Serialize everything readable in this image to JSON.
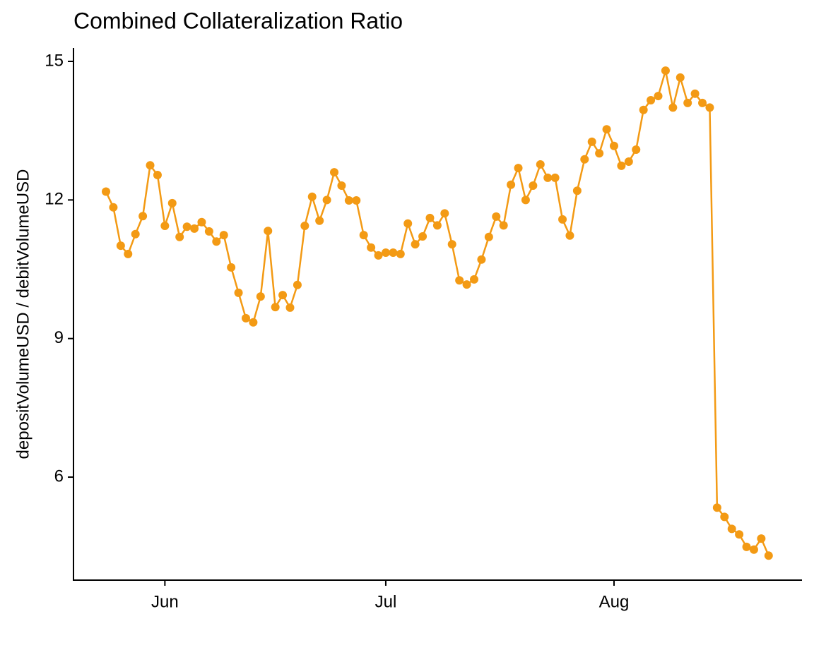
{
  "chart_data": {
    "type": "line",
    "title": "Combined Collateralization Ratio",
    "y_label": "depositVolumeUSD / debitVolumeUSD",
    "categories": [
      null,
      null,
      null,
      null,
      null,
      null,
      null,
      null,
      "Jun",
      null,
      null,
      null,
      null,
      null,
      null,
      null,
      null,
      null,
      null,
      null,
      null,
      null,
      null,
      null,
      null,
      null,
      null,
      null,
      null,
      null,
      null,
      null,
      null,
      null,
      null,
      null,
      null,
      null,
      "Jul",
      null,
      null,
      null,
      null,
      null,
      null,
      null,
      null,
      null,
      null,
      null,
      null,
      null,
      null,
      null,
      null,
      null,
      null,
      null,
      null,
      null,
      null,
      null,
      null,
      null,
      null,
      null,
      null,
      null,
      null,
      "Aug",
      null,
      null,
      null,
      null,
      null,
      null,
      null,
      null,
      null,
      null,
      null,
      null,
      null,
      null,
      null,
      null,
      null,
      null,
      null,
      null,
      null
    ],
    "values": [
      12.18,
      11.84,
      11.01,
      10.83,
      11.26,
      11.65,
      12.75,
      12.54,
      11.44,
      11.93,
      11.2,
      11.42,
      11.38,
      11.52,
      11.32,
      11.1,
      11.24,
      10.54,
      9.99,
      9.44,
      9.35,
      9.91,
      11.33,
      9.68,
      9.94,
      9.67,
      10.16,
      11.44,
      12.07,
      11.55,
      12.0,
      12.6,
      12.31,
      11.99,
      11.99,
      11.24,
      10.97,
      10.8,
      10.86,
      10.86,
      10.83,
      11.49,
      11.04,
      11.21,
      11.61,
      11.45,
      11.71,
      11.04,
      10.26,
      10.17,
      10.28,
      10.71,
      11.2,
      11.64,
      11.45,
      12.33,
      12.69,
      12.0,
      12.31,
      12.77,
      12.48,
      12.48,
      11.58,
      11.23,
      12.2,
      12.88,
      13.26,
      13.01,
      13.53,
      13.17,
      12.74,
      12.83,
      13.09,
      13.95,
      14.16,
      14.25,
      14.8,
      14.0,
      14.65,
      14.1,
      14.3,
      14.1,
      14.0,
      5.34,
      5.14,
      4.88,
      4.76,
      4.49,
      4.43,
      4.67,
      4.3
    ],
    "color": "#f39a14",
    "ylim": [
      3.77,
      15.29
    ],
    "yticks": [
      6,
      9,
      12,
      15
    ],
    "grid": false
  }
}
